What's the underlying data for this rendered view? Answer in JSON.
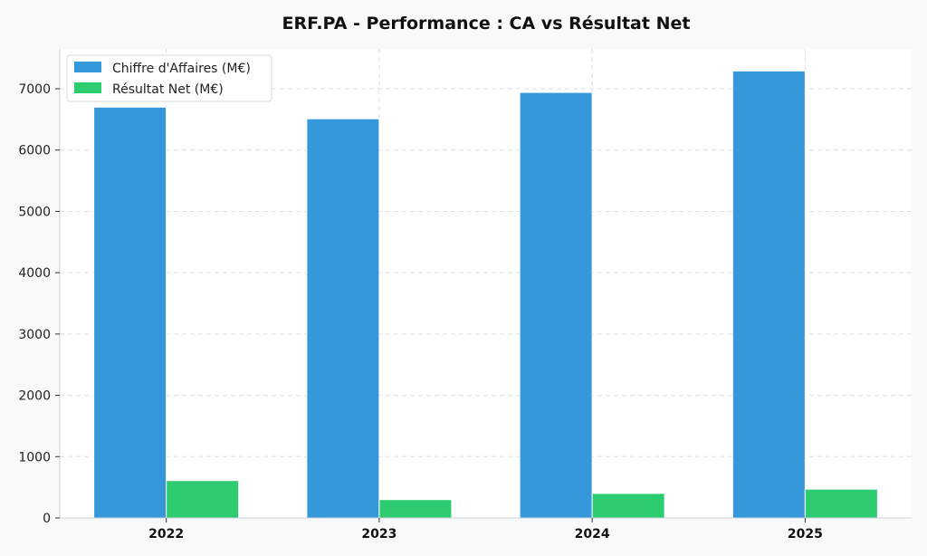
{
  "chart_data": {
    "type": "bar",
    "title": "ERF.PA - Performance : CA vs Résultat Net",
    "categories": [
      "2022",
      "2023",
      "2024",
      "2025"
    ],
    "series": [
      {
        "name": "Chiffre d'Affaires (M€)",
        "color": "#3498db",
        "values": [
          6700,
          6510,
          6940,
          7290
        ]
      },
      {
        "name": "Résultat Net (M€)",
        "color": "#2ecc71",
        "values": [
          610,
          300,
          400,
          470
        ]
      }
    ],
    "ylim": [
      0,
      7650
    ],
    "yticks": [
      "0",
      "1000",
      "2000",
      "3000",
      "4000",
      "5000",
      "6000",
      "7000"
    ],
    "grid": true,
    "legend_position": "top-left"
  }
}
